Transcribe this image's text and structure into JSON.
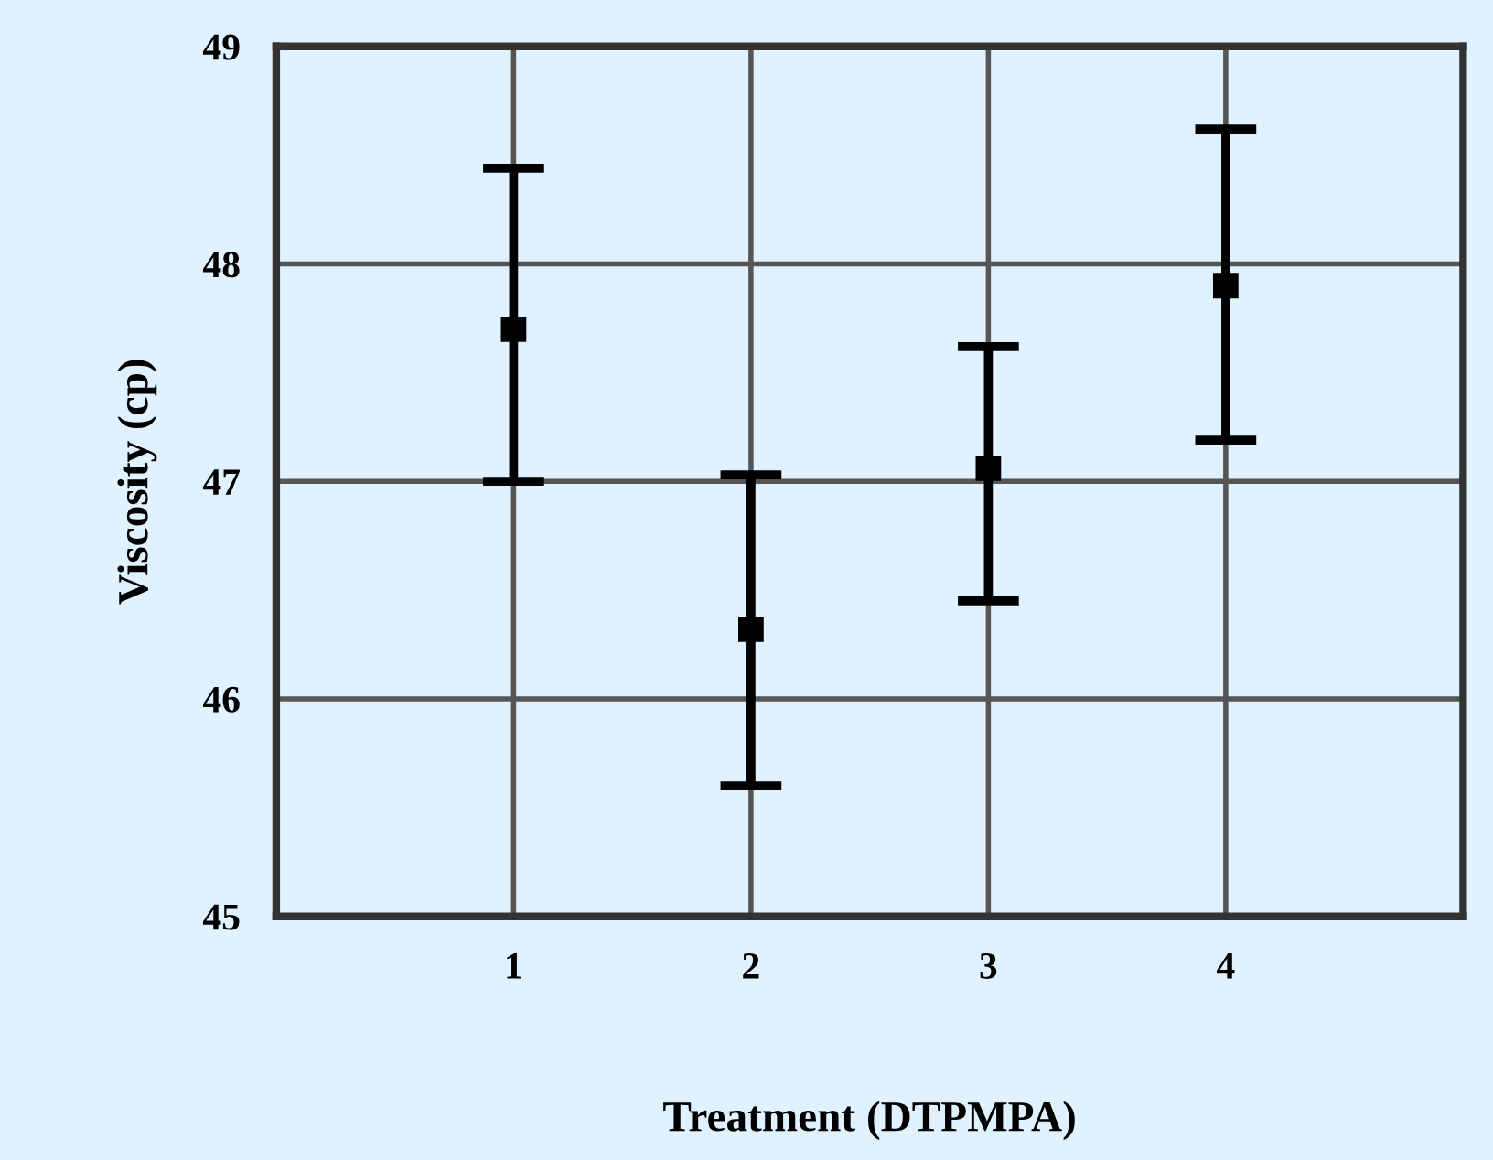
{
  "chart_data": {
    "type": "scatter",
    "xlabel": "Treatment (DTPMPA)",
    "ylabel": "Viscosity (cp)",
    "x": [
      1,
      2,
      3,
      4
    ],
    "series": [
      {
        "color": "#000000",
        "values": [
          47.7,
          46.32,
          47.06,
          47.9
        ],
        "errors": [
          [
            47.0,
            48.44
          ],
          [
            45.6,
            47.03
          ],
          [
            46.45,
            47.62
          ],
          [
            47.19,
            48.62
          ]
        ]
      }
    ],
    "xlim": [
      0,
      5
    ],
    "xticks": [
      1,
      2,
      3,
      4
    ],
    "ylim": [
      45,
      49
    ],
    "yticks": [
      45,
      46,
      47,
      48,
      49
    ],
    "grid": true,
    "marker": "square"
  }
}
